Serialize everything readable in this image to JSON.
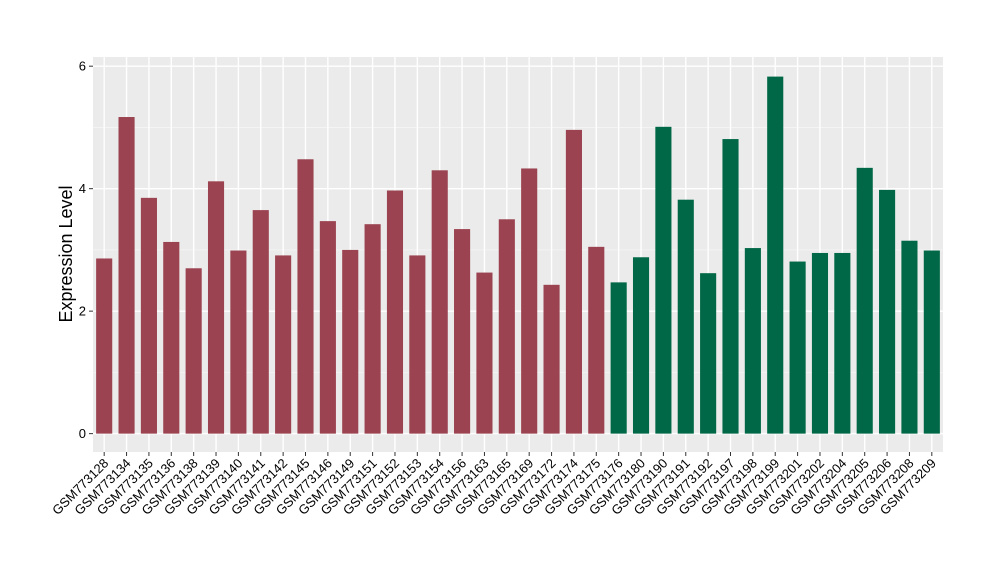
{
  "chart_data": {
    "type": "bar",
    "title": "",
    "xlabel": "",
    "ylabel": "Expression Level",
    "ylim": [
      -0.3,
      6.15
    ],
    "yticks": [
      0,
      2,
      4,
      6
    ],
    "grid": true,
    "background": "#ebebeb",
    "group_colors": [
      "#9b4350",
      "#006846"
    ],
    "categories": [
      "GSM773128",
      "GSM773134",
      "GSM773135",
      "GSM773136",
      "GSM773138",
      "GSM773139",
      "GSM773140",
      "GSM773141",
      "GSM773142",
      "GSM773145",
      "GSM773146",
      "GSM773149",
      "GSM773151",
      "GSM773152",
      "GSM773153",
      "GSM773154",
      "GSM773156",
      "GSM773163",
      "GSM773165",
      "GSM773169",
      "GSM773172",
      "GSM773174",
      "GSM773175",
      "GSM773176",
      "GSM773180",
      "GSM773190",
      "GSM773191",
      "GSM773192",
      "GSM773197",
      "GSM773198",
      "GSM773199",
      "GSM773201",
      "GSM773202",
      "GSM773204",
      "GSM773205",
      "GSM773206",
      "GSM773208",
      "GSM773209"
    ],
    "values": [
      2.86,
      5.17,
      3.85,
      3.13,
      2.7,
      4.12,
      2.99,
      3.65,
      2.91,
      4.48,
      3.47,
      3.0,
      3.42,
      3.97,
      2.91,
      4.3,
      3.34,
      2.63,
      3.5,
      4.33,
      2.43,
      4.96,
      3.05,
      2.47,
      2.88,
      5.01,
      3.82,
      2.62,
      4.81,
      3.03,
      5.83,
      2.81,
      2.95,
      2.95,
      4.34,
      3.98,
      3.15,
      2.99
    ],
    "groups": [
      0,
      0,
      0,
      0,
      0,
      0,
      0,
      0,
      0,
      0,
      0,
      0,
      0,
      0,
      0,
      0,
      0,
      0,
      0,
      0,
      0,
      0,
      0,
      1,
      1,
      1,
      1,
      1,
      1,
      1,
      1,
      1,
      1,
      1,
      1,
      1,
      1,
      1
    ]
  }
}
